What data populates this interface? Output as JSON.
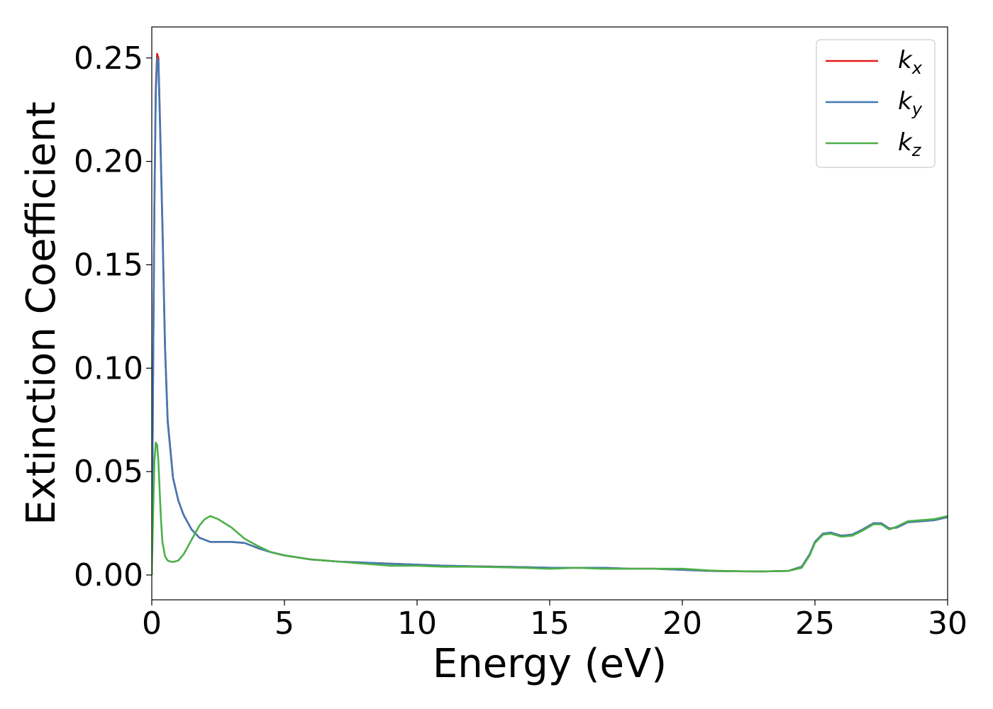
{
  "chart_data": {
    "type": "line",
    "title": "",
    "xlabel": "Energy (eV)",
    "ylabel": "Extinction Coefficient",
    "xlim": [
      0,
      30
    ],
    "ylim": [
      -0.012,
      0.265
    ],
    "xticks": [
      0,
      5,
      10,
      15,
      20,
      25,
      30
    ],
    "xtick_labels": [
      "0",
      "5",
      "10",
      "15",
      "20",
      "25",
      "30"
    ],
    "yticks": [
      0.0,
      0.05,
      0.1,
      0.15,
      0.2,
      0.25
    ],
    "ytick_labels": [
      "0.00",
      "0.05",
      "0.10",
      "0.15",
      "0.20",
      "0.25"
    ],
    "grid": false,
    "legend_position": "top-right",
    "series": [
      {
        "name": "k",
        "subscript": "x",
        "color": "#e41a1c",
        "x": [
          0,
          0.05,
          0.1,
          0.15,
          0.2,
          0.25,
          0.3,
          0.4,
          0.5,
          0.6,
          0.8,
          1.0,
          1.2,
          1.5,
          1.8,
          2.0,
          2.2,
          2.5,
          3.0,
          3.5,
          4.0,
          4.5,
          5.0,
          6.0,
          7.0,
          8.0,
          9.0,
          10,
          11,
          12,
          13,
          14,
          15,
          16,
          17,
          18,
          19,
          20,
          21,
          22,
          23,
          24,
          24.5,
          24.8,
          25.0,
          25.3,
          25.6,
          26.0,
          26.4,
          26.8,
          27.2,
          27.5,
          27.8,
          28.1,
          28.5,
          29.0,
          29.5,
          30
        ],
        "y": [
          0.0,
          0.1,
          0.18,
          0.235,
          0.252,
          0.25,
          0.225,
          0.17,
          0.11,
          0.075,
          0.047,
          0.036,
          0.029,
          0.022,
          0.018,
          0.017,
          0.016,
          0.016,
          0.016,
          0.0155,
          0.013,
          0.011,
          0.0095,
          0.0075,
          0.0065,
          0.006,
          0.0055,
          0.005,
          0.0045,
          0.0042,
          0.004,
          0.0038,
          0.0035,
          0.0035,
          0.0035,
          0.003,
          0.003,
          0.0025,
          0.002,
          0.0018,
          0.0017,
          0.002,
          0.004,
          0.01,
          0.016,
          0.02,
          0.0205,
          0.019,
          0.0195,
          0.022,
          0.025,
          0.025,
          0.0225,
          0.023,
          0.0255,
          0.026,
          0.0265,
          0.028
        ]
      },
      {
        "name": "k",
        "subscript": "y",
        "color": "#4279b5",
        "x": [
          0,
          0.05,
          0.1,
          0.15,
          0.2,
          0.25,
          0.3,
          0.4,
          0.5,
          0.6,
          0.8,
          1.0,
          1.2,
          1.5,
          1.8,
          2.0,
          2.2,
          2.5,
          3.0,
          3.5,
          4.0,
          4.5,
          5.0,
          6.0,
          7.0,
          8.0,
          9.0,
          10,
          11,
          12,
          13,
          14,
          15,
          16,
          17,
          18,
          19,
          20,
          21,
          22,
          23,
          24,
          24.5,
          24.8,
          25.0,
          25.3,
          25.6,
          26.0,
          26.4,
          26.8,
          27.2,
          27.5,
          27.8,
          28.1,
          28.5,
          29.0,
          29.5,
          30
        ],
        "y": [
          0.0,
          0.1,
          0.178,
          0.232,
          0.25,
          0.248,
          0.223,
          0.168,
          0.109,
          0.074,
          0.047,
          0.036,
          0.029,
          0.022,
          0.018,
          0.017,
          0.016,
          0.016,
          0.016,
          0.0155,
          0.013,
          0.011,
          0.0095,
          0.0075,
          0.0065,
          0.006,
          0.0055,
          0.005,
          0.0045,
          0.0042,
          0.004,
          0.0038,
          0.0035,
          0.0035,
          0.0035,
          0.003,
          0.003,
          0.0025,
          0.002,
          0.0018,
          0.0017,
          0.002,
          0.004,
          0.01,
          0.016,
          0.02,
          0.0205,
          0.019,
          0.0195,
          0.022,
          0.025,
          0.025,
          0.0225,
          0.023,
          0.0255,
          0.026,
          0.0265,
          0.028
        ]
      },
      {
        "name": "k",
        "subscript": "z",
        "color": "#4daf4a",
        "x": [
          0,
          0.05,
          0.1,
          0.15,
          0.2,
          0.25,
          0.3,
          0.35,
          0.4,
          0.5,
          0.6,
          0.7,
          0.8,
          1.0,
          1.2,
          1.5,
          1.8,
          2.0,
          2.2,
          2.5,
          3.0,
          3.5,
          4.0,
          4.5,
          5.0,
          6.0,
          7.0,
          8.0,
          9.0,
          10,
          11,
          12,
          13,
          14,
          15,
          16,
          17,
          18,
          19,
          20,
          21,
          22,
          23,
          24,
          24.5,
          24.8,
          25.0,
          25.3,
          25.6,
          26.0,
          26.4,
          26.8,
          27.2,
          27.5,
          27.8,
          28.1,
          28.5,
          29.0,
          29.5,
          30
        ],
        "y": [
          0.0,
          0.03,
          0.055,
          0.064,
          0.063,
          0.055,
          0.04,
          0.026,
          0.016,
          0.009,
          0.007,
          0.0065,
          0.0063,
          0.007,
          0.01,
          0.017,
          0.024,
          0.027,
          0.0285,
          0.027,
          0.023,
          0.0175,
          0.014,
          0.011,
          0.0095,
          0.0075,
          0.0065,
          0.0055,
          0.0045,
          0.0045,
          0.004,
          0.004,
          0.0038,
          0.0035,
          0.003,
          0.0035,
          0.003,
          0.003,
          0.003,
          0.003,
          0.0022,
          0.0018,
          0.0017,
          0.002,
          0.0035,
          0.0095,
          0.0155,
          0.0195,
          0.02,
          0.0185,
          0.019,
          0.0215,
          0.0245,
          0.0245,
          0.022,
          0.0235,
          0.026,
          0.0265,
          0.027,
          0.0285
        ]
      }
    ]
  }
}
